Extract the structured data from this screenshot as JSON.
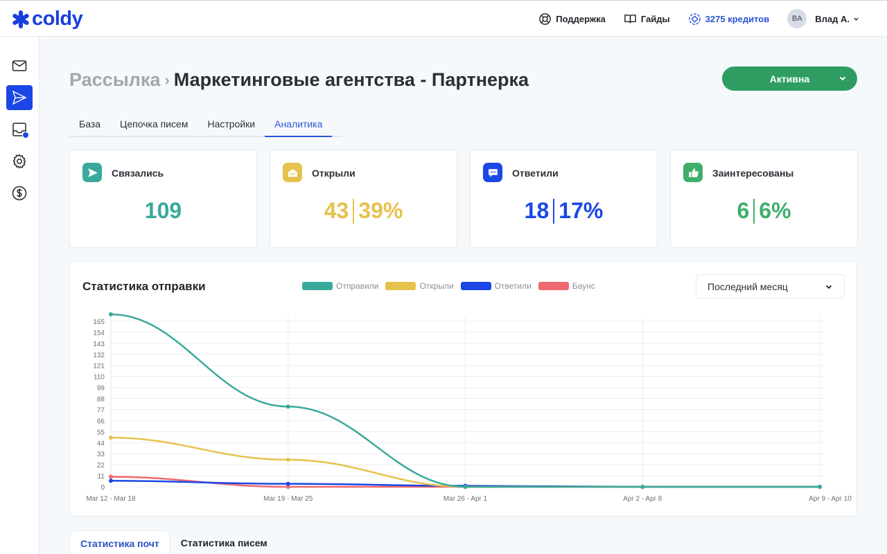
{
  "app": {
    "logo_text": "coldy",
    "brand_color": "#1a3fe0"
  },
  "header": {
    "support_label": "Поддержка",
    "guides_label": "Гайды",
    "credits_label": "3275 кредитов",
    "avatar_initials": "BA",
    "user_name": "Влад А."
  },
  "sidebar": {
    "items": [
      {
        "name": "mail",
        "icon": "envelope-icon",
        "active": false
      },
      {
        "name": "campaigns",
        "icon": "send-icon",
        "active": true
      },
      {
        "name": "inbox",
        "icon": "inbox-icon",
        "active": false,
        "badge": true
      },
      {
        "name": "settings",
        "icon": "gear-icon",
        "active": false
      },
      {
        "name": "billing",
        "icon": "dollar-icon",
        "active": false
      }
    ]
  },
  "breadcrumb": {
    "parent": "Рассылка",
    "separator": "›",
    "current": "Маркетинговые агентства - Партнерка"
  },
  "status_button": {
    "label": "Активна",
    "color": "#2f9d62"
  },
  "tabs": [
    {
      "label": "База",
      "active": false
    },
    {
      "label": "Цепочка писем",
      "active": false
    },
    {
      "label": "Настройки",
      "active": false
    },
    {
      "label": "Аналитика",
      "active": true
    }
  ],
  "stats": [
    {
      "label": "Связались",
      "value": "109",
      "percent": null,
      "color": "#3aa99b",
      "icon": "send-icon"
    },
    {
      "label": "Открыли",
      "value": "43",
      "percent": "39%",
      "color": "#e6c24c",
      "icon": "open-envelope-icon"
    },
    {
      "label": "Ответили",
      "value": "18",
      "percent": "17%",
      "color": "#1a47e6",
      "icon": "chat-bubble-icon"
    },
    {
      "label": "Заинтересованы",
      "value": "6",
      "percent": "6%",
      "color": "#3fae6b",
      "icon": "thumbs-up-icon"
    }
  ],
  "chart_section": {
    "title": "Статистика отправки",
    "period_select": "Последний месяц"
  },
  "chart_data": {
    "type": "line",
    "title": "Статистика отправки",
    "xlabel": "",
    "ylabel": "",
    "categories": [
      "Mar 12 - Mar 18",
      "Mar 19 - Mar 25",
      "Mar 26 - Apr 1",
      "Apr 2 - Apr 8",
      "Apr 9 - Apr 10"
    ],
    "series": [
      {
        "name": "Отправили",
        "color": "#3aa99b",
        "values": [
          172,
          80,
          0,
          0,
          0
        ]
      },
      {
        "name": "Открыли",
        "color": "#e6c24c",
        "values": [
          49,
          27,
          0,
          0,
          0
        ]
      },
      {
        "name": "Ответили",
        "color": "#1a47e6",
        "values": [
          6,
          3,
          1,
          0,
          0
        ]
      },
      {
        "name": "Баунс",
        "color": "#ee6a6f",
        "values": [
          10,
          0,
          0,
          0,
          0
        ]
      }
    ],
    "yticks": [
      0,
      11,
      22,
      33,
      44,
      55,
      66,
      77,
      88,
      99,
      110,
      121,
      132,
      143,
      154,
      165
    ],
    "ylim": [
      0,
      172
    ],
    "grid": true,
    "legend_position": "top"
  },
  "bottom_tabs": [
    {
      "label": "Статистика почт",
      "active": true
    },
    {
      "label": "Статистика писем",
      "active": false
    }
  ]
}
